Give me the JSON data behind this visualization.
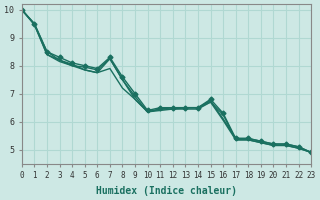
{
  "xlabel": "Humidex (Indice chaleur)",
  "xlim": [
    0,
    23
  ],
  "ylim": [
    4.5,
    10.2
  ],
  "yticks": [
    5,
    6,
    7,
    8,
    9,
    10
  ],
  "xticks": [
    0,
    1,
    2,
    3,
    4,
    5,
    6,
    7,
    8,
    9,
    10,
    11,
    12,
    13,
    14,
    15,
    16,
    17,
    18,
    19,
    20,
    21,
    22,
    23
  ],
  "background_color": "#cde8e4",
  "grid_color": "#b0d8d2",
  "line_color": "#1a7060",
  "lines": [
    {
      "x": [
        0,
        1,
        2,
        3,
        4,
        5,
        6,
        7,
        8,
        9,
        10,
        11,
        12,
        13,
        14,
        15,
        16,
        17,
        18,
        19,
        20,
        21,
        22,
        23
      ],
      "y": [
        10.0,
        9.5,
        8.5,
        8.3,
        8.1,
        8.0,
        7.9,
        8.3,
        7.6,
        7.0,
        6.4,
        6.5,
        6.5,
        6.5,
        6.5,
        6.8,
        6.3,
        5.4,
        5.4,
        5.3,
        5.2,
        5.2,
        5.1,
        4.9
      ],
      "marker": true
    },
    {
      "x": [
        0,
        1,
        2,
        3,
        4,
        5,
        6,
        7,
        8,
        9,
        10,
        11,
        12,
        13,
        14,
        15,
        16,
        17,
        18,
        19,
        20,
        21,
        22,
        23
      ],
      "y": [
        10.0,
        9.5,
        8.5,
        8.2,
        8.0,
        7.95,
        7.85,
        8.25,
        7.5,
        6.9,
        6.35,
        6.4,
        6.45,
        6.45,
        6.45,
        6.7,
        6.25,
        5.35,
        5.35,
        5.25,
        5.15,
        5.15,
        5.05,
        4.9
      ],
      "marker": false
    },
    {
      "x": [
        0,
        1,
        2,
        3,
        4,
        5,
        6,
        7,
        8,
        9,
        10,
        11,
        12,
        13,
        14,
        15,
        16,
        17,
        18,
        19,
        20,
        21,
        22,
        23
      ],
      "y": [
        10.0,
        9.48,
        8.4,
        8.2,
        8.05,
        7.85,
        7.75,
        7.9,
        7.2,
        6.8,
        6.35,
        6.45,
        6.45,
        6.5,
        6.5,
        6.75,
        6.1,
        5.4,
        5.4,
        5.3,
        5.2,
        5.2,
        5.1,
        4.9
      ],
      "marker": false
    },
    {
      "x": [
        0,
        1,
        2,
        3,
        4,
        5,
        6,
        7,
        8,
        9,
        10,
        11,
        12,
        13,
        14,
        15,
        16,
        17,
        18,
        19,
        20,
        21,
        22,
        23
      ],
      "y": [
        10.0,
        9.46,
        8.4,
        8.15,
        8.0,
        7.85,
        7.75,
        8.25,
        7.5,
        6.8,
        6.35,
        6.45,
        6.5,
        6.5,
        6.5,
        6.7,
        6.05,
        5.35,
        5.35,
        5.25,
        5.15,
        5.15,
        5.05,
        4.9
      ],
      "marker": false
    }
  ]
}
